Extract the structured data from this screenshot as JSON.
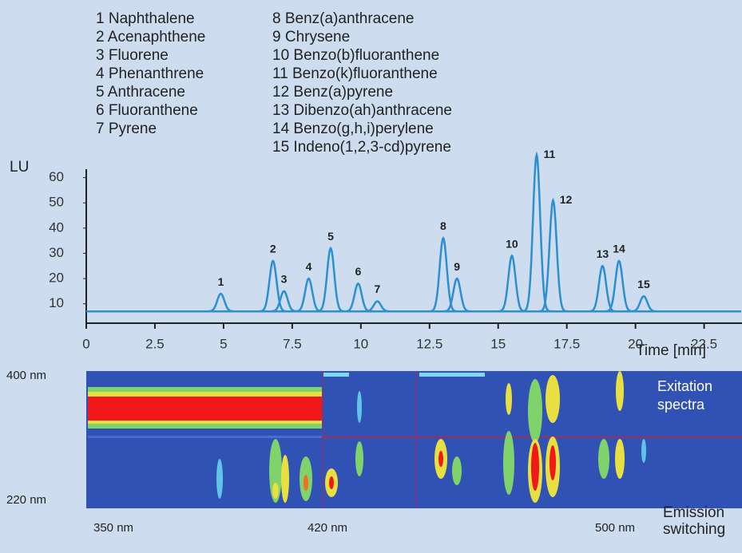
{
  "chart_data": {
    "type": "line",
    "compounds": [
      "1 Naphthalene",
      "2 Acenaphthene",
      "3 Fluorene",
      "4 Phenanthrene",
      "5 Anthracene",
      "6 Fluoranthene",
      "7 Pyrene",
      "8 Benz(a)anthracene",
      "9 Chrysene",
      "10 Benzo(b)fluoranthene",
      "11 Benzo(k)fluoranthene",
      "12 Benz(a)pyrene",
      "13 Dibenzo(ah)anthracene",
      "14 Benzo(g,h,i)perylene",
      "15 Indeno(1,2,3-cd)pyrene"
    ],
    "y_label": "LU",
    "x_label": "Time [min]",
    "xlim": [
      0,
      23.85
    ],
    "ylim": [
      2,
      70
    ],
    "xticks": [
      0,
      2.5,
      5,
      7.5,
      10,
      12.5,
      15,
      17.5,
      20,
      22.5
    ],
    "yticks": [
      10,
      20,
      30,
      40,
      50,
      60
    ],
    "color": "#2b8fd0",
    "baseline": 7,
    "peaks": {
      "labels": [
        "1",
        "2",
        "3",
        "4",
        "5",
        "6",
        "7",
        "8",
        "9",
        "10",
        "11",
        "12",
        "13",
        "14",
        "15"
      ],
      "times": [
        4.9,
        6.8,
        7.2,
        8.1,
        8.9,
        9.9,
        10.6,
        13.0,
        13.5,
        15.5,
        16.4,
        17.0,
        18.8,
        19.4,
        20.3
      ],
      "heights": [
        14,
        27,
        15,
        20,
        32,
        18,
        11,
        36,
        20,
        29,
        69,
        51,
        25,
        27,
        13
      ]
    },
    "spectra_panel": {
      "y_labels": [
        "400 nm",
        "220 nm"
      ],
      "x_labels": [
        "350 nm",
        "420 nm",
        "500 nm"
      ],
      "top_note": [
        "Exitation",
        "spectra"
      ],
      "bottom_note": [
        "Emission",
        "switching"
      ]
    }
  }
}
